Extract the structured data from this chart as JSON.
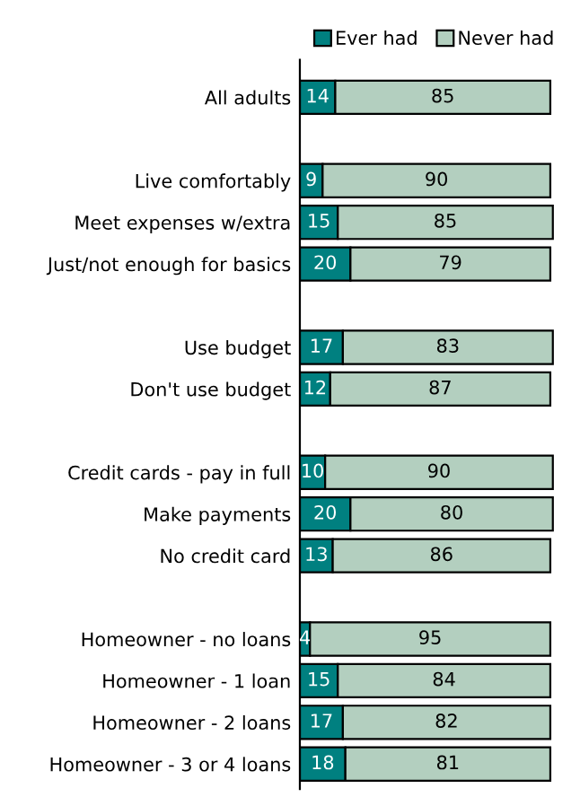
{
  "chart_data": {
    "type": "bar",
    "orientation": "horizontal",
    "stacked": true,
    "data_labels": true,
    "legend": "top right",
    "grid": false,
    "tick_labels": "y",
    "categories": [
      "All adults",
      null,
      "Live comfortably",
      "Meet expenses w/extra",
      "Just/not enough for basics",
      null,
      "Use budget",
      "Don't use budget",
      null,
      "Credit cards - pay in full",
      "Make payments",
      "No credit card",
      null,
      "Homeowner - no loans",
      "Homeowner - 1 loan",
      "Homeowner - 2 loans",
      "Homeowner - 3 or 4 loans"
    ],
    "series": [
      {
        "name": "Ever had",
        "color": "#008080",
        "values": [
          14,
          null,
          9,
          15,
          20,
          null,
          17,
          12,
          null,
          10,
          20,
          13,
          null,
          4,
          15,
          17,
          18
        ]
      },
      {
        "name": "Never had",
        "color": "#b3cfbf",
        "values": [
          85,
          null,
          90,
          85,
          79,
          null,
          83,
          87,
          null,
          90,
          80,
          86,
          null,
          95,
          84,
          82,
          81
        ]
      }
    ]
  }
}
